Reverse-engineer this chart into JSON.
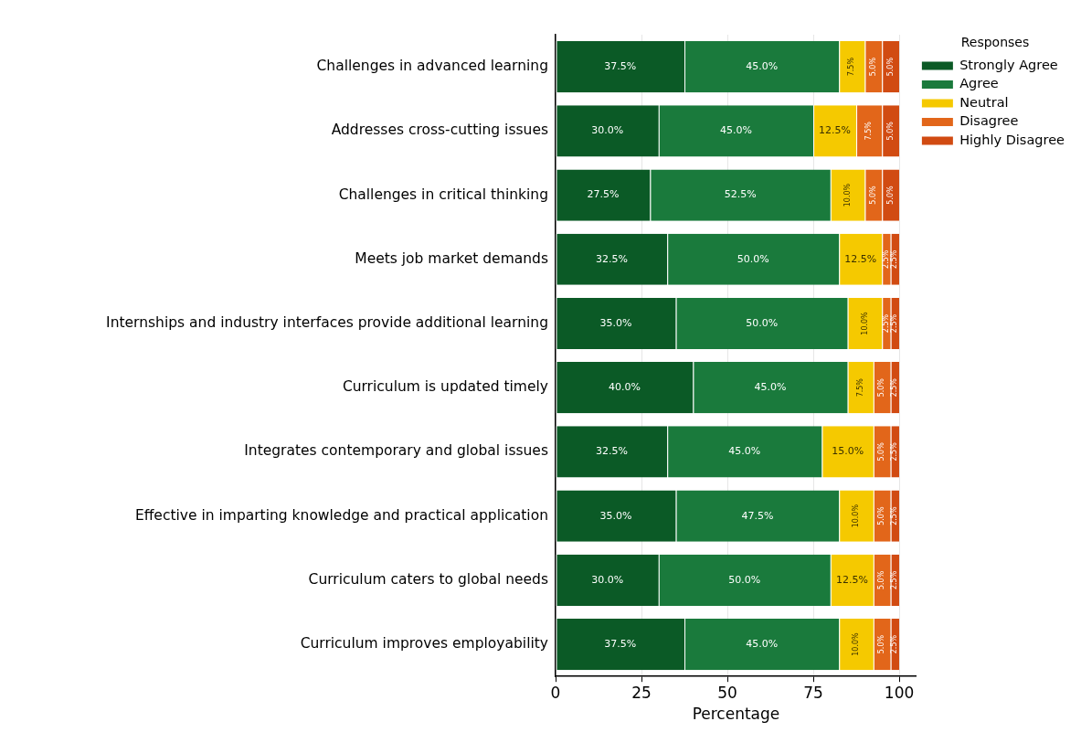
{
  "chart_data": {
    "type": "bar",
    "orientation": "horizontal",
    "stacked": true,
    "xlabel": "Percentage",
    "legend_title": "Responses",
    "legend": "top right",
    "grid": "x",
    "xlim": [
      0,
      105
    ],
    "xticks": [
      0,
      25,
      50,
      75,
      100
    ],
    "categories": [
      "Challenges in advanced learning",
      "Addresses cross-cutting issues",
      "Challenges in critical thinking",
      "Meets job market demands",
      "Internships and industry interfaces provide additional learning",
      "Curriculum is updated timely",
      "Integrates contemporary and global issues",
      "Effective in imparting knowledge and practical application",
      "Curriculum caters to global needs",
      "Curriculum improves employability"
    ],
    "series": [
      {
        "name": "Strongly Agree",
        "color": "#0b5a26",
        "values": [
          37.5,
          30.0,
          27.5,
          32.5,
          35.0,
          40.0,
          32.5,
          35.0,
          30.0,
          37.5
        ],
        "value_labels": [
          "37.5%",
          "30.0%",
          "27.5%",
          "32.5%",
          "35.0%",
          "40.0%",
          "32.5%",
          "35.0%",
          "30.0%",
          "37.5%"
        ]
      },
      {
        "name": "Agree",
        "color": "#1a7a3c",
        "values": [
          45.0,
          45.0,
          52.5,
          50.0,
          50.0,
          45.0,
          45.0,
          47.5,
          50.0,
          45.0
        ],
        "value_labels": [
          "45.0%",
          "45.0%",
          "52.5%",
          "50.0%",
          "50.0%",
          "45.0%",
          "45.0%",
          "47.5%",
          "50.0%",
          "45.0%"
        ]
      },
      {
        "name": "Neutral",
        "color": "#f5c900",
        "values": [
          7.5,
          12.5,
          10.0,
          12.5,
          10.0,
          7.5,
          15.0,
          10.0,
          12.5,
          10.0
        ],
        "value_labels": [
          "7.5%",
          "12.5%",
          "10.0%",
          "12.5%",
          "10.0%",
          "7.5%",
          "15.0%",
          "10.0%",
          "12.5%",
          "10.0%"
        ]
      },
      {
        "name": "Disagree",
        "color": "#e2661a",
        "values": [
          5.0,
          7.5,
          5.0,
          2.5,
          2.5,
          5.0,
          5.0,
          5.0,
          5.0,
          5.0
        ],
        "value_labels": [
          "5.0%",
          "7.5%",
          "5.0%",
          "2.5%",
          "2.5%",
          "5.0%",
          "5.0%",
          "5.0%",
          "5.0%",
          "5.0%"
        ]
      },
      {
        "name": "Highly Disagree",
        "color": "#d14b12",
        "values": [
          5.0,
          5.0,
          5.0,
          2.5,
          2.5,
          2.5,
          2.5,
          2.5,
          2.5,
          2.5
        ],
        "value_labels": [
          "5.0%",
          "5.0%",
          "5.0%",
          "2.5%",
          "2.5%",
          "2.5%",
          "2.5%",
          "2.5%",
          "2.5%",
          "2.5%"
        ]
      }
    ]
  }
}
